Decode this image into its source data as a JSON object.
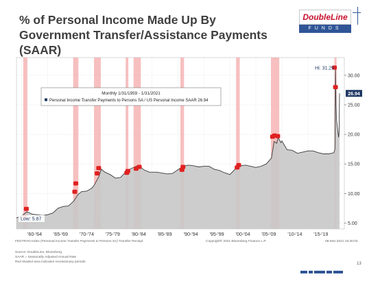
{
  "page": {
    "title": "% of Personal Income Made Up By Government Transfer/Assistance Payments (SAAR)",
    "logo_top": "DoubleLine",
    "logo_bottom": "FUNDS",
    "page_number": "13"
  },
  "footer": {
    "source_left": "FEDTRAN Index (Personal Income Transfer Payments to Persons SA) Transfer Receipt",
    "copyright": "Copyright® 2021 Bloomberg Finance L.P.",
    "timestamp": "08-Mar-2021 15:30:03",
    "notes": [
      "Source: DoubleLine, Bloomberg",
      "SAAR = Seasonally Adjusted Annual Rate",
      "Red shaded area indicates recessionary periods"
    ]
  },
  "chart_data": {
    "type": "area",
    "legend_title": "Monthly 1/31/1959 - 1/31/2021",
    "legend_entry": "Personal Income Transfer Payments to Persons SA / US Personal Income SAAR 26.94",
    "series": [
      {
        "name": "Personal Income Transfer Payments to Persons SA / US Personal Income SAAR",
        "x": [
          1959.0,
          1960.0,
          1961.0,
          1962.0,
          1963.0,
          1964.0,
          1965.0,
          1966.0,
          1967.0,
          1968.0,
          1969.0,
          1970.0,
          1970.8,
          1971.5,
          1972.5,
          1973.5,
          1974.0,
          1974.8,
          1975.3,
          1976.0,
          1977.0,
          1978.0,
          1979.0,
          1980.0,
          1980.5,
          1981.0,
          1982.0,
          1982.8,
          1983.5,
          1984.5,
          1986.0,
          1988.0,
          1989.0,
          1990.0,
          1991.0,
          1992.0,
          1993.0,
          1994.0,
          1995.0,
          1996.0,
          1997.0,
          1998.0,
          1999.0,
          2000.0,
          2001.0,
          2002.0,
          2003.0,
          2004.0,
          2005.0,
          2006.0,
          2007.0,
          2008.0,
          2008.5,
          2009.0,
          2009.3,
          2009.8,
          2010.0,
          2011.0,
          2012.0,
          2013.0,
          2014.0,
          2015.0,
          2016.0,
          2017.0,
          2018.0,
          2019.0,
          2020.0,
          2020.2,
          2020.3,
          2020.4,
          2020.5,
          2020.7,
          2020.9,
          2021.0,
          2021.08
        ],
        "y": [
          5.87,
          6.2,
          6.9,
          6.5,
          6.4,
          6.3,
          6.4,
          6.7,
          7.5,
          7.8,
          7.9,
          8.7,
          9.8,
          10.3,
          10.4,
          10.9,
          11.5,
          12.8,
          14.1,
          13.6,
          13.2,
          12.6,
          12.7,
          13.6,
          14.0,
          14.2,
          14.6,
          14.5,
          14.0,
          13.6,
          13.6,
          13.3,
          13.4,
          14.0,
          14.6,
          14.8,
          14.7,
          14.5,
          14.6,
          14.6,
          14.1,
          13.9,
          13.5,
          13.2,
          14.1,
          14.7,
          14.8,
          14.6,
          14.4,
          14.6,
          15.0,
          16.0,
          18.8,
          18.5,
          19.5,
          18.6,
          18.9,
          17.4,
          17.3,
          16.8,
          17.0,
          17.2,
          17.2,
          16.9,
          16.7,
          16.7,
          16.9,
          17.5,
          31.29,
          25.0,
          22.5,
          21.0,
          19.5,
          20.5,
          26.94
        ]
      }
    ],
    "ylim": [
      4,
      33
    ],
    "yticks": [
      5,
      10,
      15,
      20,
      25,
      30
    ],
    "ytick_labels": [
      "5.00",
      "10.00",
      "15.00",
      "20.00",
      "25.00",
      "30.00"
    ],
    "xlim": [
      1959,
      2022
    ],
    "xtick_labels": [
      "'60-'64",
      "'65-'69",
      "'70-'74",
      "'75-'79",
      "'80-'84",
      "'85-'89",
      "'90-'94",
      "'95-'99",
      "'00-'04",
      "'05-'09",
      "'10-'14",
      "'15-'19"
    ],
    "xtick_bounds": [
      1960,
      1965,
      1970,
      1975,
      1980,
      1985,
      1990,
      1995,
      2000,
      2005,
      2010,
      2015,
      2020
    ],
    "recessions": [
      [
        1960.3,
        1961.1
      ],
      [
        1969.9,
        1970.9
      ],
      [
        1973.9,
        1975.2
      ],
      [
        1980.0,
        1980.5
      ],
      [
        1981.5,
        1982.9
      ],
      [
        1990.5,
        1991.2
      ],
      [
        2001.2,
        2001.9
      ],
      [
        2007.9,
        2009.5
      ],
      [
        2020.1,
        2020.5
      ]
    ],
    "recession_markers": [
      [
        1960.6,
        6.0
      ],
      [
        1960.9,
        7.4
      ],
      [
        1970.2,
        10.3
      ],
      [
        1970.4,
        11.7
      ],
      [
        1974.5,
        13.4
      ],
      [
        1974.8,
        14.3
      ],
      [
        1980.2,
        13.5
      ],
      [
        1980.4,
        13.8
      ],
      [
        1982.0,
        14.2
      ],
      [
        1982.6,
        14.5
      ],
      [
        1990.8,
        14.0
      ],
      [
        1991.0,
        14.5
      ],
      [
        2001.4,
        14.4
      ],
      [
        2001.7,
        14.8
      ],
      [
        2008.2,
        19.6
      ],
      [
        2008.6,
        19.8
      ],
      [
        2009.2,
        19.7
      ],
      [
        2020.1,
        31.3
      ],
      [
        2020.3,
        28.0
      ]
    ],
    "annotations": {
      "high": "Hi: 31.29",
      "low": "Low: 5.87",
      "last": "26.94"
    },
    "colors": {
      "area": "#c8c8c8",
      "line": "#3a3a3a",
      "recession": "#f4a9a9",
      "marker": "#e02020",
      "last_badge": "#1f3864"
    }
  }
}
